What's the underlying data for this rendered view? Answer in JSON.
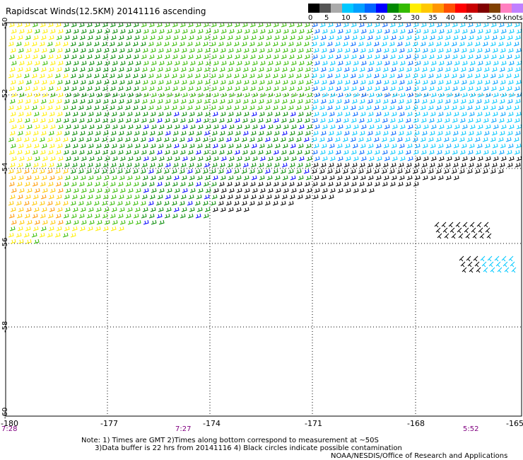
{
  "title": "Rapidscat Winds(12.5KM) 20141116 ascending",
  "legend": {
    "colors": [
      "#000000",
      "#555555",
      "#aaaaaa",
      "#00c8ff",
      "#00a0ff",
      "#0064ff",
      "#0000ff",
      "#008800",
      "#33bb00",
      "#ffee00",
      "#ffc800",
      "#ff9600",
      "#ff5000",
      "#ff0000",
      "#c80000",
      "#800000",
      "#804000",
      "#ff80c0",
      "#c080ff",
      "#8000c0"
    ],
    "labels": [
      "0",
      "5",
      "10",
      "15",
      "20",
      "25",
      "30",
      "35",
      "40",
      "45",
      ">50 knots"
    ]
  },
  "axes": {
    "lat_labels": [
      "-50",
      "-52",
      "-54",
      "-56",
      "-58",
      "-60"
    ],
    "lon_labels": [
      "-180",
      "-177",
      "-174",
      "-171",
      "-168",
      "-165"
    ]
  },
  "times": [
    "7:28",
    "7:27",
    "5:52"
  ],
  "note_lines": [
    "Note: 1) Times are GMT 2)Times along bottom correspond to measurement at ~50S",
    "      3)Data buffer is 22 hrs from 20141116 4) Black circles indicate possible contamination"
  ],
  "credit": "NOAA/NESDIS/Office of Research and Applications"
}
